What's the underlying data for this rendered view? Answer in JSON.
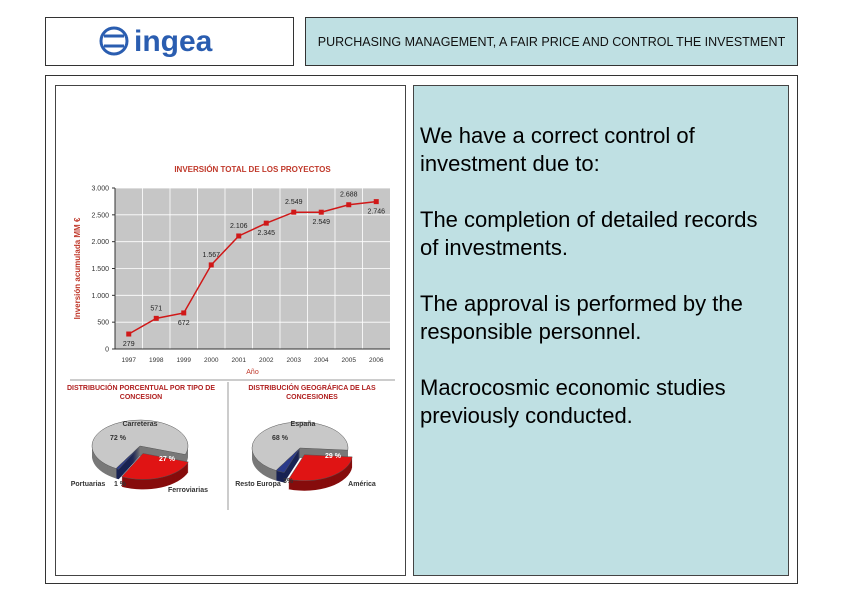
{
  "header": {
    "logo": "ingea",
    "title": "PURCHASING MANAGEMENT, A FAIR PRICE AND CONTROL THE INVESTMENT"
  },
  "chart_data": [
    {
      "type": "line",
      "title": "INVERSIÓN TOTAL DE LOS PROYECTOS",
      "y_label": "Inversión acumulada MM €",
      "x_label": "Año",
      "categories": [
        "1997",
        "1998",
        "1999",
        "2000",
        "2001",
        "2002",
        "2003",
        "2004",
        "2005",
        "2006"
      ],
      "values": [
        279,
        571,
        672,
        1567,
        2106,
        2345,
        2549,
        2549,
        2688,
        2746
      ],
      "value_labels": [
        "279",
        "571",
        "672",
        "1.567",
        "2.106",
        "2.345",
        "2.549",
        "2.549",
        "2.688",
        "2.746"
      ],
      "color": "#d01818",
      "ylim": [
        0,
        3000
      ],
      "yticks": [
        0,
        500,
        {
          "value": 1000,
          "label": "1.000"
        },
        {
          "value": 1500,
          "label": "1.500"
        },
        {
          "value": 2000,
          "label": "2.000"
        },
        {
          "value": 2500,
          "label": "2.500"
        },
        {
          "value": 3000,
          "label": "3.000"
        }
      ],
      "grid": true
    },
    {
      "type": "pie",
      "title": "DISTRIBUCIÓN PORCENTUAL POR TIPO DE CONCESION",
      "categories": [
        "Carreteras",
        "Ferroviarias",
        "Portuarias"
      ],
      "values": [
        72,
        27,
        1
      ],
      "value_labels": [
        "72 %",
        "27 %",
        "1 %"
      ],
      "colors": [
        "#c8c8c8",
        "#e01414",
        "#2a3a8a"
      ]
    },
    {
      "type": "pie",
      "title": "DISTRIBUCIÓN GEOGRÁFICA DE LAS CONCESIONES",
      "categories": [
        "España",
        "América",
        "Resto Europa"
      ],
      "values": [
        68,
        29,
        3
      ],
      "value_labels": [
        "68 %",
        "29 %",
        "3%"
      ],
      "colors": [
        "#c8c8c8",
        "#e01414",
        "#2a3a8a"
      ]
    }
  ],
  "text": {
    "paragraphs": [
      "We have a correct control of investment due to:",
      "The completion of detailed records of investments.",
      "The approval is performed by the responsible personnel.",
      "Macrocosmic economic studies previously conducted."
    ]
  }
}
